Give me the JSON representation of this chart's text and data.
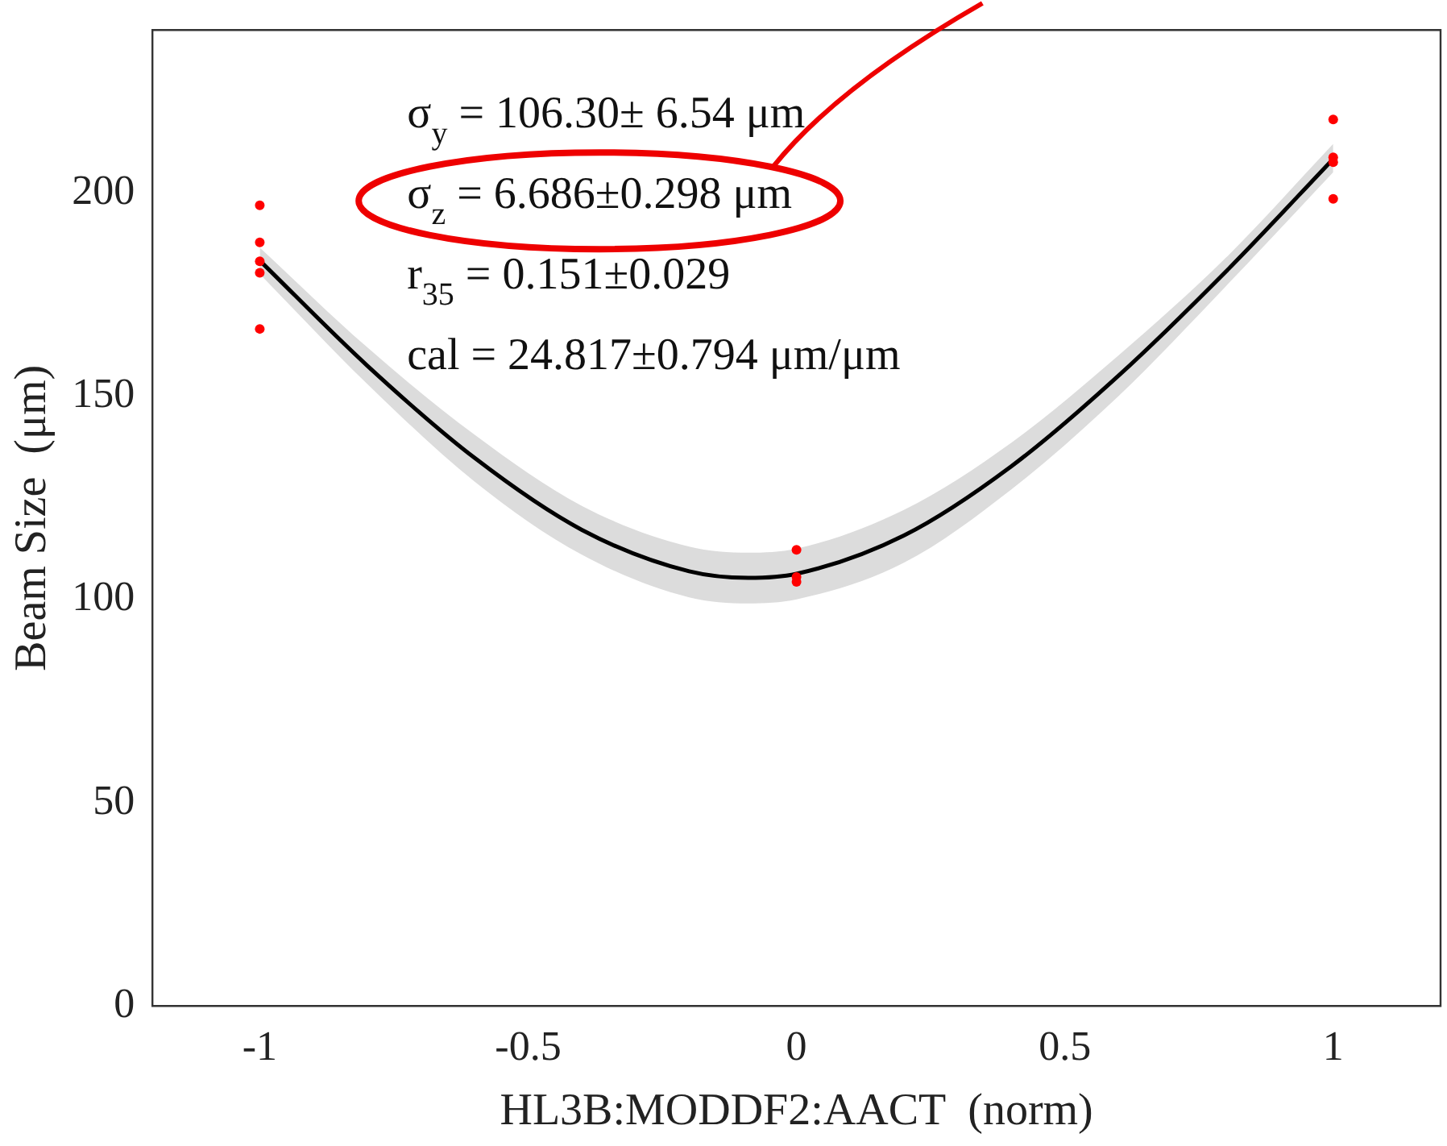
{
  "chart_data": {
    "type": "scatter",
    "xlabel": "HL3B:MODDF2:AACT  (norm)",
    "ylabel": "Beam Size  (μm)",
    "xlim": [
      -1.2,
      1.2
    ],
    "xticks": [
      -1,
      -0.5,
      0,
      0.5,
      1
    ],
    "ylim": [
      0,
      240
    ],
    "yticks": [
      0,
      50,
      100,
      150,
      200
    ],
    "grid": false,
    "legend": false,
    "marker": "circle",
    "series": [
      {
        "color": "#ff0000",
        "x": [
          -1,
          -1,
          -1,
          -1,
          -1,
          0,
          0,
          0,
          1,
          1,
          1,
          1
        ],
        "values": [
          196.9,
          187.8,
          183.1,
          180.3,
          166.5,
          112.2,
          105.5,
          104.3,
          218,
          208.7,
          207.5,
          198.5
        ]
      },
      {
        "type": "line",
        "color": "#000000",
        "marker": "none",
        "x": [
          -1,
          -0.8,
          -0.6,
          -0.4,
          -0.2,
          -0.09,
          0,
          0.2,
          0.4,
          0.6,
          0.8,
          1
        ],
        "values": [
          183.3,
          157.5,
          134.8,
          117.1,
          106.9,
          105.3,
          106.3,
          115.7,
          132.7,
          155,
          180.6,
          208.3
        ],
        "lower": [
          180,
          153,
          129,
          111,
          100.5,
          99,
          100,
          109,
          127,
          150,
          177,
          205
        ],
        "upper": [
          186.5,
          162,
          140.5,
          123,
          113,
          111.5,
          112.5,
          122,
          138.5,
          160,
          184,
          212
        ]
      }
    ],
    "annotations": [
      "σ$_{y}$ = 106.30± 6.54 μm",
      "σ$_{z}$ = 6.686±0.298 μm",
      "r$_{35}$ = 0.151±0.029",
      "cal = 24.817±0.794 μm/μm"
    ]
  }
}
